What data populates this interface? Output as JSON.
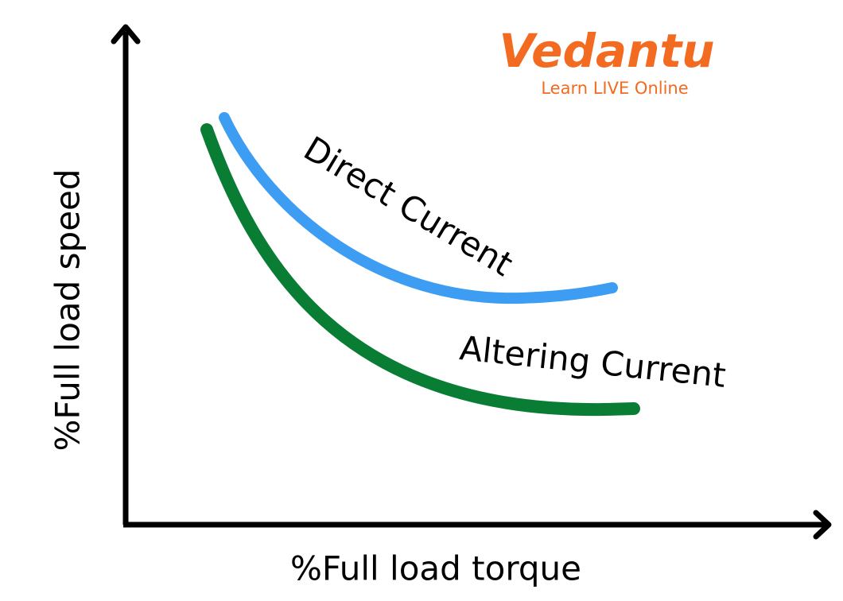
{
  "axes": {
    "x_label": "%Full load torque",
    "y_label": "%Full load speed"
  },
  "curves": [
    {
      "label": "Direct Current"
    },
    {
      "label": "Altering Current"
    }
  ],
  "logo": {
    "name": "Vedantu",
    "tagline": "Learn LIVE Online"
  }
}
